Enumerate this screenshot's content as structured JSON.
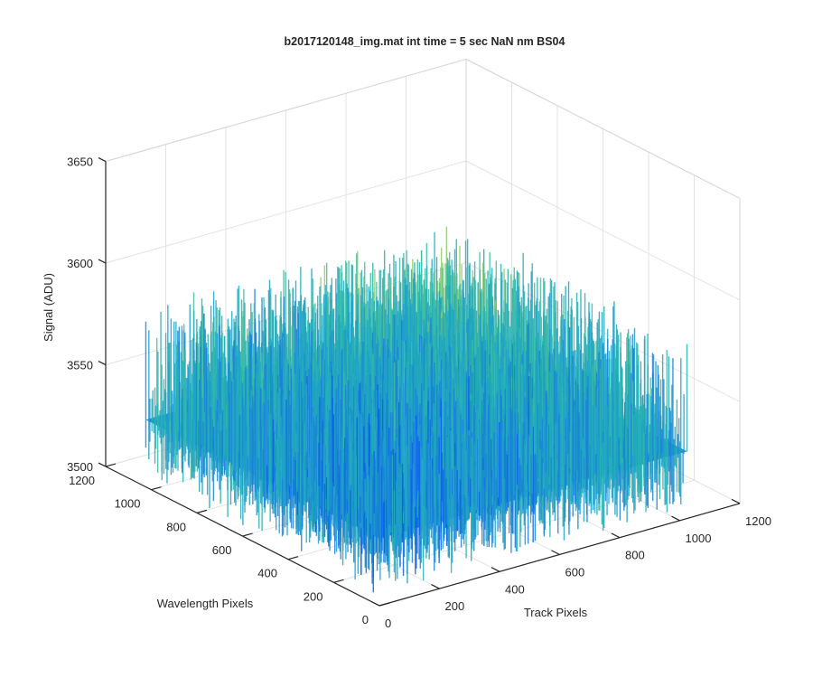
{
  "chart_data": {
    "type": "surface",
    "title": "b2017120148_img.mat int time = 5 sec  NaN nm BS04",
    "xlabel": "Track Pixels",
    "ylabel": "Wavelength Pixels",
    "zlabel": "Signal (ADU)",
    "xlim": [
      0,
      1200
    ],
    "ylim": [
      0,
      1200
    ],
    "zlim": [
      3500,
      3650
    ],
    "x_ticks": [
      0,
      200,
      400,
      600,
      800,
      1000,
      1200
    ],
    "y_ticks": [
      0,
      200,
      400,
      600,
      800,
      1000,
      1200
    ],
    "z_ticks": [
      3500,
      3550,
      3600,
      3650
    ],
    "x_tick_labels": [
      "0",
      "200",
      "400",
      "600",
      "800",
      "1000",
      "1200"
    ],
    "y_tick_labels": [
      "0",
      "200",
      "400",
      "600",
      "800",
      "1000",
      "1200"
    ],
    "z_tick_labels": [
      "3500",
      "3550",
      "3600",
      "3650"
    ],
    "data_extent": {
      "x": [
        0,
        1024
      ],
      "y": [
        0,
        1024
      ]
    },
    "signal_mean": 3533,
    "signal_noise_range": [
      3505,
      3590
    ],
    "colormap": [
      "#0a63e6",
      "#1a82d8",
      "#1fa0c8",
      "#25b0b6",
      "#3ebda0",
      "#8ccd6a"
    ],
    "grid": true,
    "box": true
  }
}
